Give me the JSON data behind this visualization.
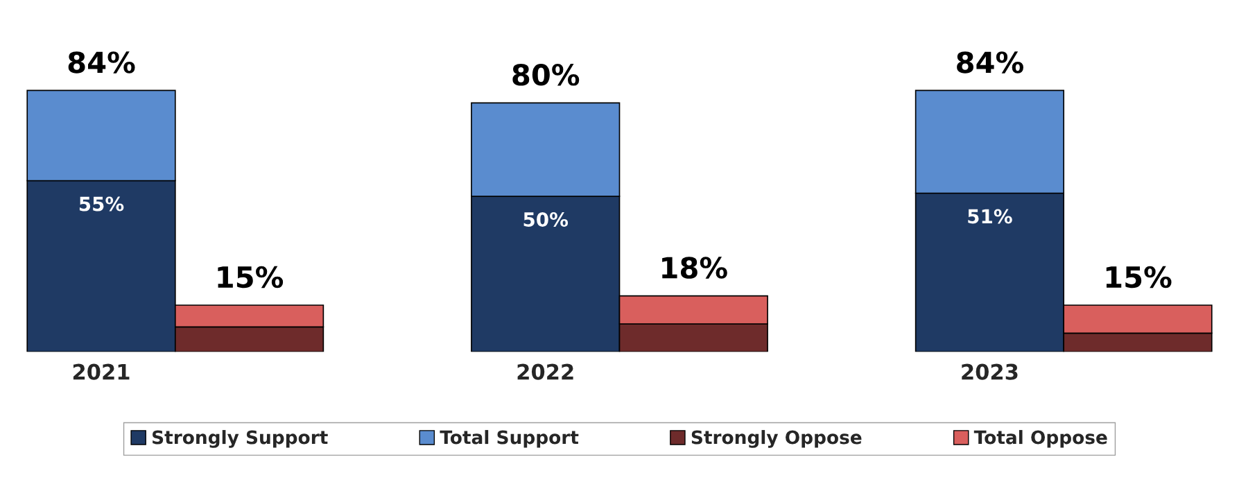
{
  "chart_data": {
    "type": "bar",
    "stacked": true,
    "categories": [
      "2021",
      null,
      "2022",
      null,
      "2023",
      null
    ],
    "series": [
      {
        "name": "Strongly Support",
        "color": "#1f3a64",
        "values": [
          55,
          null,
          50,
          null,
          51,
          null
        ],
        "value_labels": [
          "55%",
          null,
          "50%",
          null,
          "51%",
          null
        ]
      },
      {
        "name": "Total Support",
        "color": "#5a8ccf",
        "values": [
          29,
          null,
          30,
          null,
          33,
          null
        ]
      },
      {
        "name": "Strongly Oppose",
        "color": "#6e2b2b",
        "values": [
          null,
          8,
          null,
          9,
          null,
          6
        ]
      },
      {
        "name": "Total Oppose",
        "color": "#d95f5d",
        "values": [
          null,
          7,
          null,
          9,
          null,
          9
        ]
      }
    ],
    "totals": [
      "84%",
      "15%",
      "80%",
      "18%",
      "84%",
      "15%"
    ],
    "legend": "bottom"
  }
}
